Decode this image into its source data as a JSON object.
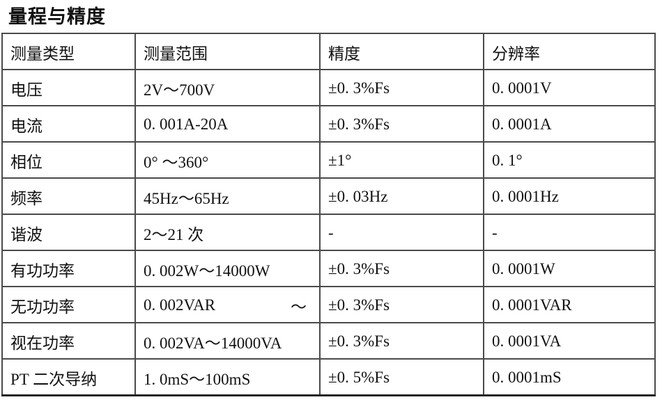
{
  "page": {
    "title": "量程与精度"
  },
  "colors": {
    "background": "#ffffff",
    "text": "#111111",
    "border": "#4a4a4a"
  },
  "table": {
    "headers": [
      "测量类型",
      "测量范围",
      "精度",
      "分辨率"
    ],
    "rows": [
      [
        "电压",
        "2V～700V",
        "±0. 3%Fs",
        "0. 0001V"
      ],
      [
        "电流",
        "0. 001A-20A",
        "±0. 3%Fs",
        "0. 0001A"
      ],
      [
        "相位",
        "0° ～360°",
        "±1°",
        "0. 1°"
      ],
      [
        "频率",
        "45Hz～65Hz",
        "±0. 03Hz",
        "0. 0001Hz"
      ],
      [
        "谐波",
        "2～21 次",
        "-",
        "-"
      ],
      [
        "有功功率",
        "0. 002W～14000W",
        "±0. 3%Fs",
        "0. 0001W"
      ],
      [
        "无功功率",
        {
          "left": "0. 002VAR",
          "right": "～"
        },
        "±0. 3%Fs",
        "0. 0001VAR"
      ],
      [
        "视在功率",
        "0. 002VA～14000VA",
        "±0. 3%Fs",
        "0. 0001VA"
      ],
      [
        "PT 二次导纳",
        "1. 0mS～100mS",
        "±0. 5%Fs",
        "0. 0001mS"
      ]
    ]
  }
}
